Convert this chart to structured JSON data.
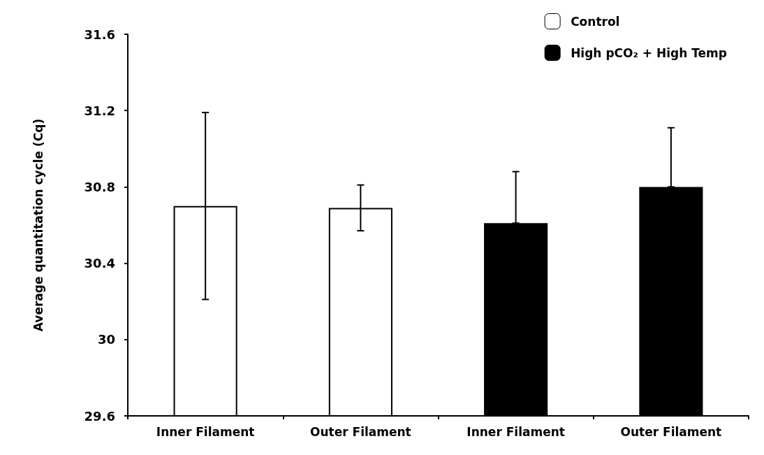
{
  "chart_data": {
    "type": "bar",
    "ylabel": "Average quantitation cycle (Cq)",
    "categories": [
      "Inner Filament",
      "Outer Filament",
      "Inner Filament",
      "Outer Filament"
    ],
    "series": [
      {
        "name": "Control",
        "color": "#ffffff",
        "values": [
          30.7,
          30.69,
          null,
          null
        ],
        "errors": [
          0.49,
          0.12,
          null,
          null
        ]
      },
      {
        "name": "High pCO₂ + High Temp",
        "color": "#000000",
        "values": [
          null,
          null,
          30.61,
          30.8
        ],
        "errors": [
          null,
          null,
          [
            30.61,
            30.88
          ],
          [
            30.8,
            31.11
          ]
        ]
      }
    ],
    "ylim": [
      29.6,
      31.6
    ],
    "yticks": [
      29.6,
      30,
      30.4,
      30.8,
      31.2,
      31.6
    ],
    "grid": false,
    "legend": "top right"
  }
}
